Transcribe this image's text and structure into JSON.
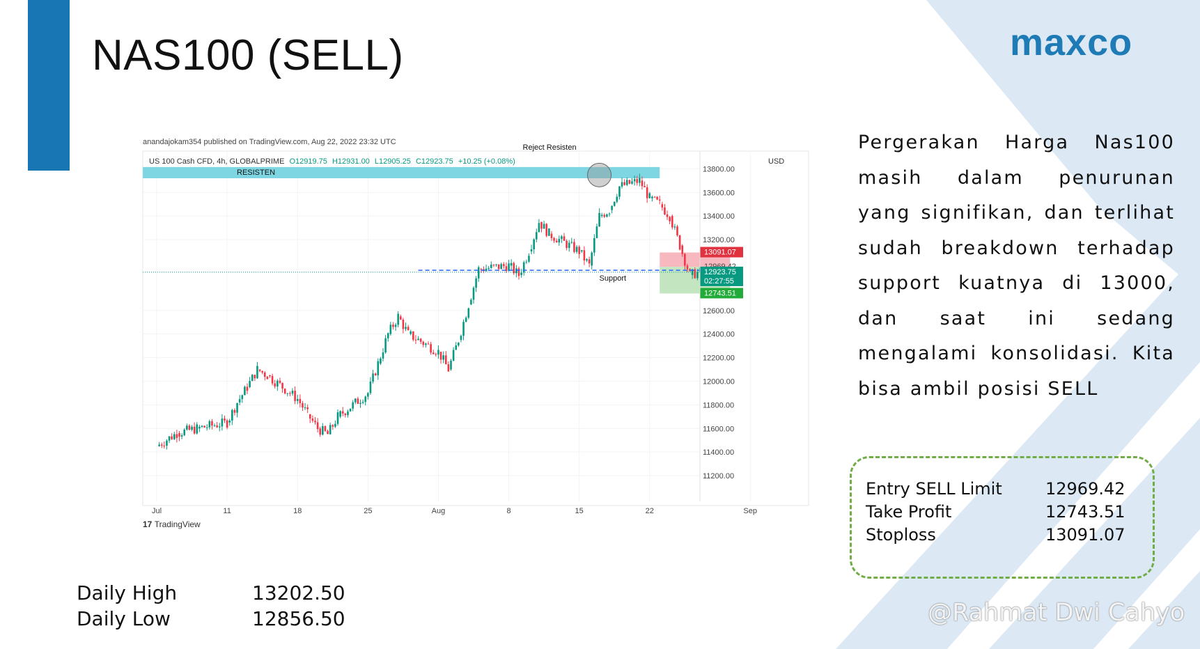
{
  "slide": {
    "title": "NAS100 (SELL)",
    "brand": "maxco",
    "accent_color": "#1976b4",
    "brand_color": "#1f7bb6"
  },
  "description": "Pergerakan Harga Nas100 masih dalam penurunan yang signifikan, dan terlihat sudah breakdown terhadap support kuatnya di 13000, dan saat ini sedang mengalami konsolidasi. Kita bisa ambil posisi SELL",
  "trade_plan": [
    {
      "label": "Entry SELL  Limit",
      "value": "12969.42"
    },
    {
      "label": "Take Profit",
      "value": "12743.51"
    },
    {
      "label": "Stoploss",
      "value": "13091.07"
    }
  ],
  "daily": [
    {
      "label": "Daily High",
      "value": "13202.50"
    },
    {
      "label": "Daily Low",
      "value": "12856.50"
    }
  ],
  "watermark": "@Rahmat Dwi Cahyo",
  "chart_data": {
    "type": "candlestick",
    "published_by": "anandajokam354 published on TradingView.com, Aug 22, 2022 23:32 UTC",
    "symbol_line": {
      "name": "US 100 Cash CFD, 4h, GLOBALPRIME",
      "open": "O12919.75",
      "high": "H12931.00",
      "low": "L12905.25",
      "close": "C12923.75",
      "change": "+10.25 (+0.08%)"
    },
    "currency": "USD",
    "ylim": [
      11100,
      13950
    ],
    "y_ticks": [
      "13800.00",
      "13600.00",
      "13400.00",
      "13200.00",
      "12600.00",
      "12400.00",
      "12200.00",
      "12000.00",
      "11800.00",
      "11600.00",
      "11400.00",
      "11200.00"
    ],
    "x_ticks": [
      "Jul",
      "11",
      "18",
      "25",
      "Aug",
      "8",
      "15",
      "22",
      "Sep"
    ],
    "x_tick_dates": [
      "2022-07-04",
      "2022-07-11",
      "2022-07-18",
      "2022-07-25",
      "2022-08-01",
      "2022-08-08",
      "2022-08-15",
      "2022-08-22",
      "2022-09-01"
    ],
    "x_range": [
      "2022-07-04",
      "2022-09-05"
    ],
    "price_tags": [
      {
        "value": "13091.07",
        "price": 13091.07,
        "color": "#e0323f"
      },
      {
        "value": "12969.42",
        "price": 12969.42,
        "color": "none"
      },
      {
        "value": "12923.75",
        "sub": "02:27:55",
        "price": 12923.75,
        "color": "#089981"
      },
      {
        "value": "12743.51",
        "price": 12743.51,
        "color": "#22ab39"
      }
    ],
    "resistance": {
      "label": "RESISTEN",
      "low": 13720,
      "high": 13815,
      "color": "#7fd6e3"
    },
    "support": {
      "label": "Support",
      "price": 12940
    },
    "reject_label": "Reject Resisten",
    "reject_point": {
      "date": "2022-08-17",
      "price": 13700
    },
    "position": {
      "entry": 12969.42,
      "stop": 13091.07,
      "target": 12743.51,
      "start": "2022-08-23",
      "end": "2022-08-30"
    },
    "footer": "TradingView",
    "series": [
      {
        "date": "2022-07-04",
        "close": 11450
      },
      {
        "date": "2022-07-06",
        "close": 11560
      },
      {
        "date": "2022-07-08",
        "close": 11600
      },
      {
        "date": "2022-07-11",
        "close": 11650
      },
      {
        "date": "2022-07-12",
        "close": 11820
      },
      {
        "date": "2022-07-13",
        "close": 11950
      },
      {
        "date": "2022-07-14",
        "close": 12100
      },
      {
        "date": "2022-07-15",
        "close": 12050
      },
      {
        "date": "2022-07-18",
        "close": 11850
      },
      {
        "date": "2022-07-19",
        "close": 11720
      },
      {
        "date": "2022-07-20",
        "close": 11600
      },
      {
        "date": "2022-07-21",
        "close": 11550
      },
      {
        "date": "2022-07-22",
        "close": 11700
      },
      {
        "date": "2022-07-25",
        "close": 11900
      },
      {
        "date": "2022-07-26",
        "close": 12150
      },
      {
        "date": "2022-07-27",
        "close": 12400
      },
      {
        "date": "2022-07-28",
        "close": 12550
      },
      {
        "date": "2022-07-29",
        "close": 12400
      },
      {
        "date": "2022-08-01",
        "close": 12250
      },
      {
        "date": "2022-08-02",
        "close": 12100
      },
      {
        "date": "2022-08-03",
        "close": 12350
      },
      {
        "date": "2022-08-04",
        "close": 12650
      },
      {
        "date": "2022-08-05",
        "close": 12950
      },
      {
        "date": "2022-08-08",
        "close": 12980
      },
      {
        "date": "2022-08-09",
        "close": 12900
      },
      {
        "date": "2022-08-10",
        "close": 13100
      },
      {
        "date": "2022-08-11",
        "close": 13350
      },
      {
        "date": "2022-08-12",
        "close": 13250
      },
      {
        "date": "2022-08-15",
        "close": 13100
      },
      {
        "date": "2022-08-16",
        "close": 12980
      },
      {
        "date": "2022-08-17",
        "close": 13400
      },
      {
        "date": "2022-08-18",
        "close": 13450
      },
      {
        "date": "2022-08-19",
        "close": 13650
      },
      {
        "date": "2022-08-21",
        "close": 13700
      },
      {
        "date": "2022-08-22",
        "close": 13550
      },
      {
        "date": "2022-08-23",
        "close": 13500
      },
      {
        "date": "2022-08-24",
        "close": 13400
      },
      {
        "date": "2022-08-25",
        "close": 13150
      },
      {
        "date": "2022-08-26",
        "close": 12900
      },
      {
        "date": "2022-08-27",
        "close": 12923.75
      }
    ]
  }
}
